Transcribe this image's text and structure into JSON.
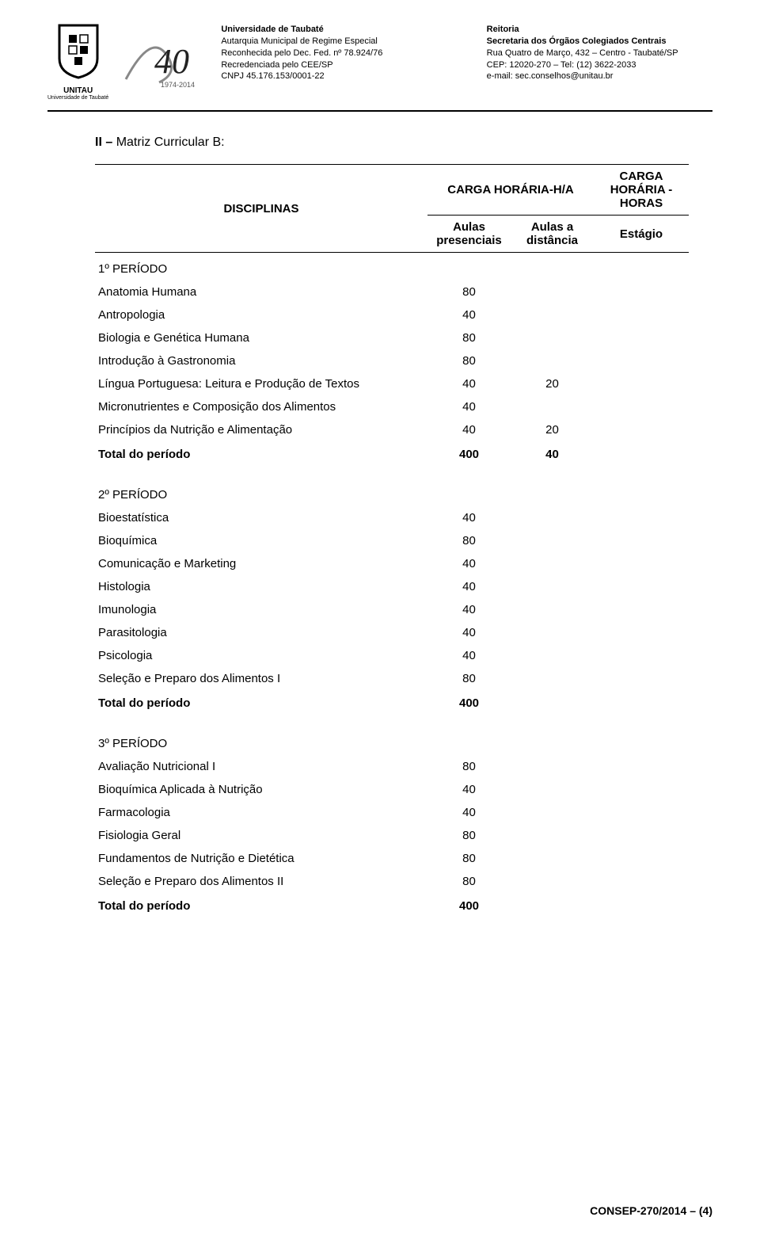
{
  "header": {
    "left": {
      "l1": "Universidade de Taubaté",
      "l2": "Autarquia Municipal de Regime Especial",
      "l3": "Reconhecida pelo Dec. Fed. nº 78.924/76",
      "l4": "Recredenciada pelo CEE/SP",
      "l5": "CNPJ 45.176.153/0001-22"
    },
    "right": {
      "l1": "Reitoria",
      "l2": "Secretaria dos Órgãos Colegiados Centrais",
      "l3": "Rua Quatro de Março, 432 – Centro - Taubaté/SP",
      "l4": "CEP: 12020-270 – Tel: (12) 3622-2033",
      "l5": "e-mail: sec.conselhos@unitau.br"
    },
    "logo_label": "UNITAU",
    "logo_sub": "Universidade de Taubaté",
    "forty_years": "1974-2014"
  },
  "section_title_prefix": "II – ",
  "section_title": "Matriz Curricular B:",
  "table_headers": {
    "disciplinas": "DISCIPLINAS",
    "carga_ha": "CARGA HORÁRIA-H/A",
    "aulas_pres": "Aulas presenciais",
    "aulas_dist": "Aulas a distância",
    "carga_h": "CARGA HORÁRIA - HORAS",
    "estagio": "Estágio"
  },
  "p1": {
    "title": "1º PERÍODO",
    "rows": [
      {
        "label": "Anatomia Humana",
        "pres": "80",
        "dist": "",
        "est": ""
      },
      {
        "label": "Antropologia",
        "pres": "40",
        "dist": "",
        "est": ""
      },
      {
        "label": "Biologia e Genética Humana",
        "pres": "80",
        "dist": "",
        "est": ""
      },
      {
        "label": "Introdução à Gastronomia",
        "pres": "80",
        "dist": "",
        "est": ""
      },
      {
        "label": "Língua Portuguesa: Leitura e Produção de Textos",
        "pres": "40",
        "dist": "20",
        "est": ""
      },
      {
        "label": "Micronutrientes e Composição dos Alimentos",
        "pres": "40",
        "dist": "",
        "est": ""
      },
      {
        "label": "Princípios da Nutrição e Alimentação",
        "pres": "40",
        "dist": "20",
        "est": ""
      }
    ],
    "total_label": "Total do período",
    "total_pres": "400",
    "total_dist": "40"
  },
  "p2": {
    "title": "2º PERÍODO",
    "rows": [
      {
        "label": "Bioestatística",
        "pres": "40",
        "dist": "",
        "est": ""
      },
      {
        "label": "Bioquímica",
        "pres": "80",
        "dist": "",
        "est": ""
      },
      {
        "label": "Comunicação e Marketing",
        "pres": "40",
        "dist": "",
        "est": ""
      },
      {
        "label": "Histologia",
        "pres": "40",
        "dist": "",
        "est": ""
      },
      {
        "label": "Imunologia",
        "pres": "40",
        "dist": "",
        "est": ""
      },
      {
        "label": "Parasitologia",
        "pres": "40",
        "dist": "",
        "est": ""
      },
      {
        "label": "Psicologia",
        "pres": "40",
        "dist": "",
        "est": ""
      },
      {
        "label": "Seleção e Preparo dos Alimentos I",
        "pres": "80",
        "dist": "",
        "est": ""
      }
    ],
    "total_label": "Total do período",
    "total_pres": "400",
    "total_dist": ""
  },
  "p3": {
    "title": "3º PERÍODO",
    "rows": [
      {
        "label": "Avaliação Nutricional I",
        "pres": "80",
        "dist": "",
        "est": ""
      },
      {
        "label": "Bioquímica Aplicada à Nutrição",
        "pres": "40",
        "dist": "",
        "est": ""
      },
      {
        "label": "Farmacologia",
        "pres": "40",
        "dist": "",
        "est": ""
      },
      {
        "label": "Fisiologia Geral",
        "pres": "80",
        "dist": "",
        "est": ""
      },
      {
        "label": "Fundamentos de Nutrição e Dietética",
        "pres": "80",
        "dist": "",
        "est": ""
      },
      {
        "label": "Seleção e Preparo dos Alimentos II",
        "pres": "80",
        "dist": "",
        "est": ""
      }
    ],
    "total_label": "Total do período",
    "total_pres": "400",
    "total_dist": ""
  },
  "footer": "CONSEP-270/2014 – (4)",
  "styling": {
    "body_font_family": "Arial",
    "body_font_size_pt": 11,
    "header_font_size_pt": 8,
    "background_color": "#ffffff",
    "text_color": "#000000",
    "hr_color": "#000000",
    "table_border_color": "#000000",
    "col_widths_pct": [
      56,
      14,
      14,
      16
    ]
  }
}
